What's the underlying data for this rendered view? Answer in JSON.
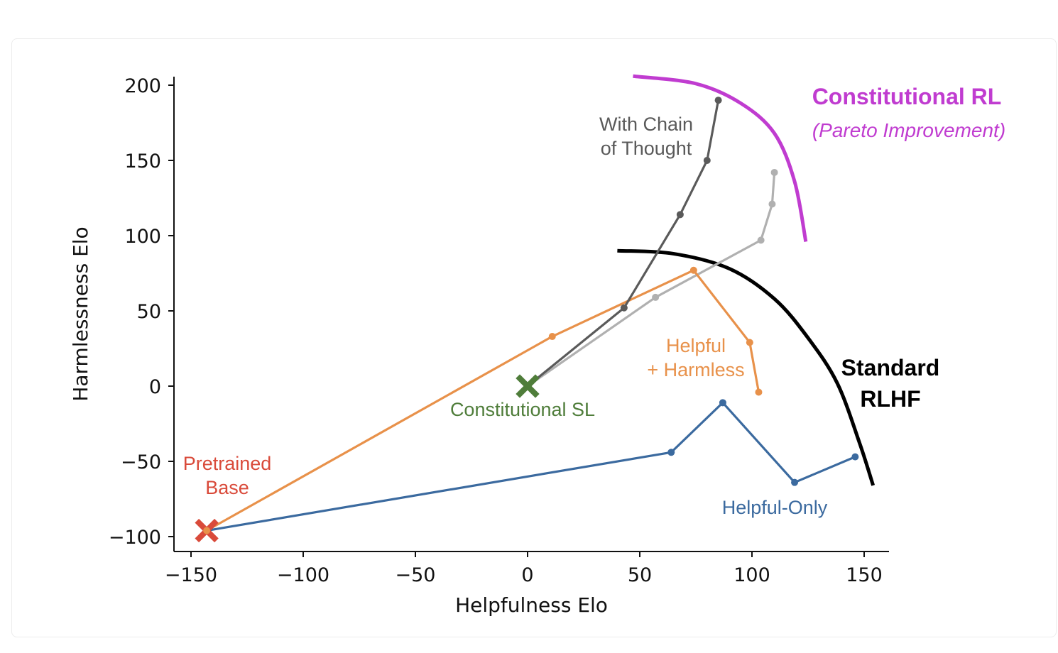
{
  "chart_data": {
    "type": "line",
    "xlabel": "Helpfulness Elo",
    "ylabel": "Harmlessness Elo",
    "xlim": [
      -157,
      160
    ],
    "ylim": [
      -110,
      205
    ],
    "xticks": [
      -150,
      -100,
      -50,
      0,
      50,
      100,
      150
    ],
    "yticks": [
      -100,
      -50,
      0,
      50,
      100,
      150,
      200
    ],
    "xtick_labels": [
      "−150",
      "−100",
      "−50",
      "0",
      "50",
      "100",
      "150"
    ],
    "ytick_labels": [
      "−100",
      "−50",
      "0",
      "50",
      "100",
      "150",
      "200"
    ],
    "grid": false,
    "series": [
      {
        "name": "Helpful-Only",
        "color": "#3b6a9f",
        "points": [
          [
            -143,
            -96
          ],
          [
            64,
            -44
          ],
          [
            87,
            -11
          ],
          [
            119,
            -64
          ],
          [
            146,
            -47
          ]
        ]
      },
      {
        "name": "Helpful + Harmless",
        "color": "#e8914a",
        "points": [
          [
            -143,
            -96
          ],
          [
            11,
            33
          ],
          [
            74,
            77
          ],
          [
            99,
            29
          ],
          [
            103,
            -4
          ]
        ]
      },
      {
        "name": "With Chain of Thought",
        "color": "#5a5a5a",
        "points": [
          [
            0,
            0
          ],
          [
            43,
            52
          ],
          [
            68,
            114
          ],
          [
            80,
            150
          ],
          [
            85,
            190
          ]
        ]
      },
      {
        "color": "#b0b0b0",
        "points": [
          [
            0,
            0
          ],
          [
            57,
            59
          ],
          [
            104,
            97
          ],
          [
            109,
            121
          ],
          [
            110,
            142
          ]
        ]
      }
    ],
    "markers": [
      {
        "label": "Pretrained Base",
        "x": -143,
        "y": -96,
        "color": "#d94a3a"
      },
      {
        "label": "Constitutional SL",
        "x": 0,
        "y": 0,
        "color": "#4f7d3a"
      }
    ],
    "frontiers": [
      {
        "label": "Standard RLHF",
        "color": "#000000",
        "points": [
          [
            40,
            90
          ],
          [
            65,
            88
          ],
          [
            90,
            78
          ],
          [
            110,
            58
          ],
          [
            125,
            32
          ],
          [
            138,
            2
          ],
          [
            148,
            -38
          ],
          [
            154,
            -66
          ]
        ]
      },
      {
        "label": "Constitutional RL",
        "sublabel": "(Pareto Improvement)",
        "color": "#c03cd0",
        "points": [
          [
            47,
            206
          ],
          [
            75,
            201
          ],
          [
            95,
            188
          ],
          [
            110,
            168
          ],
          [
            119,
            136
          ],
          [
            124,
            96
          ]
        ]
      }
    ],
    "annotations": {
      "cot_line1": "With Chain",
      "cot_line2": "of Thought",
      "hh_line1": "Helpful",
      "hh_line2": "+ Harmless",
      "base_line1": "Pretrained",
      "base_line2": "Base",
      "csl": "Constitutional SL",
      "helpful_only": "Helpful-Only",
      "rlhf_line1": "Standard",
      "rlhf_line2": "RLHF",
      "crl_title": "Constitutional RL",
      "crl_sub": "(Pareto Improvement)"
    }
  }
}
